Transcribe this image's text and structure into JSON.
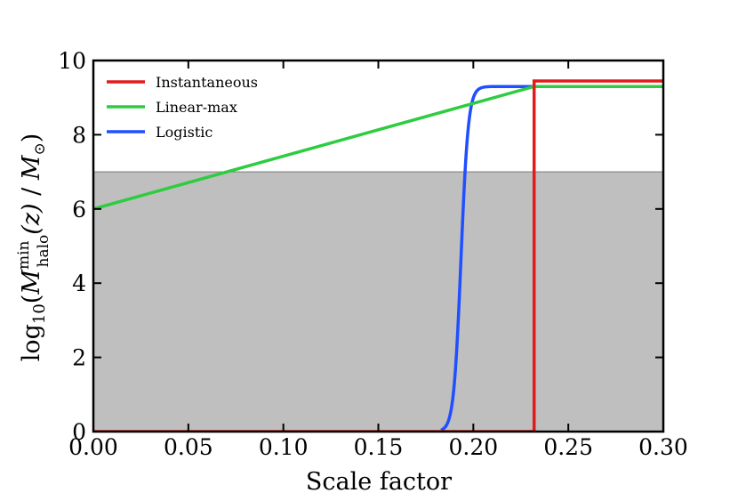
{
  "chart_data": {
    "type": "line",
    "xlabel": "Scale factor",
    "ylabel_parts": {
      "prefix": "log",
      "sub10": "10",
      "open": "(",
      "M": "M",
      "sup": "min",
      "sub": "halo",
      "z": "(z)",
      "slash": " / ",
      "Msun": "M",
      "sun_sub": "⊙",
      "close": ")"
    },
    "xlim": [
      0.0,
      0.3
    ],
    "ylim": [
      0,
      10
    ],
    "xticks": [
      0.0,
      0.05,
      0.1,
      0.15,
      0.2,
      0.25,
      0.3
    ],
    "xtick_labels": [
      "0.00",
      "0.05",
      "0.10",
      "0.15",
      "0.20",
      "0.25",
      "0.30"
    ],
    "yticks": [
      0,
      2,
      4,
      6,
      8,
      10
    ],
    "ytick_labels": [
      "0",
      "2",
      "4",
      "6",
      "8",
      "10"
    ],
    "shaded_region": {
      "y_from": 0,
      "y_to": 7.0,
      "color": "#bfbfbf"
    },
    "legend_position": "top-left",
    "series": [
      {
        "name": "Instantaneous",
        "color": "#e31a1c",
        "x": [
          0.0,
          0.232,
          0.232,
          0.3
        ],
        "y": [
          0.0,
          0.0,
          9.45,
          9.45
        ]
      },
      {
        "name": "Linear-max",
        "color": "#2ecc40",
        "x": [
          0.0,
          0.232,
          0.3
        ],
        "y": [
          6.0,
          9.3,
          9.3
        ]
      },
      {
        "name": "Logistic",
        "color": "#1f4fff",
        "logistic": {
          "L": 9.3,
          "x0": 0.1935,
          "k": 520,
          "x_start": 0.183,
          "x_end": 0.3
        }
      }
    ]
  }
}
